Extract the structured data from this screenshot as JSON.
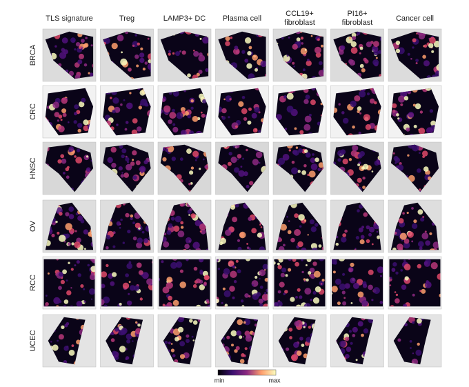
{
  "columns": [
    [
      "TLS signature"
    ],
    [
      "Treg"
    ],
    [
      "LAMP3+ DC"
    ],
    [
      "Plasma cell"
    ],
    [
      "CCL19+",
      "fibroblast"
    ],
    [
      "PI16+",
      "fibroblast"
    ],
    [
      "Cancer cell"
    ]
  ],
  "rows": [
    "BRCA",
    "CRC",
    "HNSC",
    "OV",
    "RCC",
    "UCEC"
  ],
  "colorbar": {
    "min": "min",
    "max": "max"
  }
}
